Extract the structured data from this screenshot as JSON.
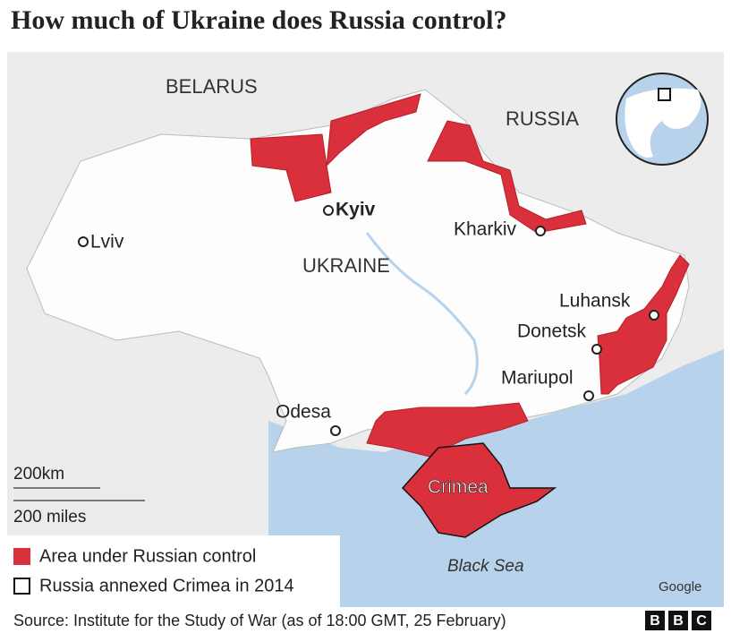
{
  "header": {
    "title": "How much of Ukraine does Russia control?"
  },
  "map": {
    "countries": [
      "BELARUS",
      "RUSSIA",
      "UKRAINE"
    ],
    "cities": [
      "Kyiv",
      "Lviv",
      "Kharkiv",
      "Luhansk",
      "Donetsk",
      "Mariupol",
      "Odesa"
    ],
    "region": "Crimea",
    "sea": "Black Sea",
    "attribution": "Google"
  },
  "scale": {
    "km": "200km",
    "miles": "200 miles"
  },
  "legend": [
    "Area under Russian control",
    "Russia annexed Crimea in 2014"
  ],
  "footer": {
    "source": "Source: Institute for the Study of War (as of 18:00 GMT, 25 February)",
    "logo": [
      "B",
      "B",
      "C"
    ]
  }
}
